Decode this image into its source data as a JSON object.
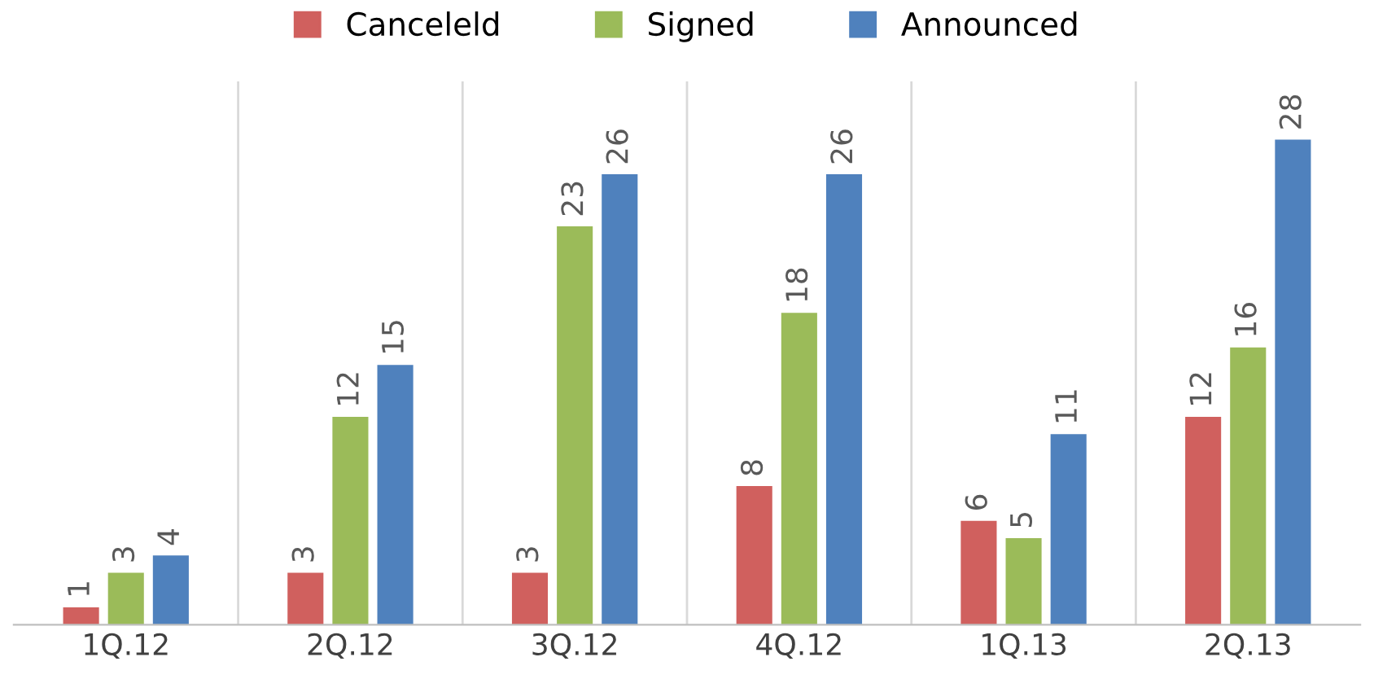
{
  "chart_data": {
    "type": "bar",
    "categories": [
      "1Q.12",
      "2Q.12",
      "3Q.12",
      "4Q.12",
      "1Q.13",
      "2Q.13"
    ],
    "series": [
      {
        "name": "Canceleld",
        "color": "#d0605e",
        "values": [
          1,
          3,
          3,
          8,
          6,
          12
        ]
      },
      {
        "name": "Signed",
        "color": "#9bbb59",
        "values": [
          3,
          12,
          23,
          18,
          5,
          16
        ]
      },
      {
        "name": "Announced",
        "color": "#4f81bd",
        "values": [
          4,
          15,
          26,
          26,
          11,
          28
        ]
      }
    ],
    "data_labels": true,
    "legend": "top",
    "grid": false
  }
}
